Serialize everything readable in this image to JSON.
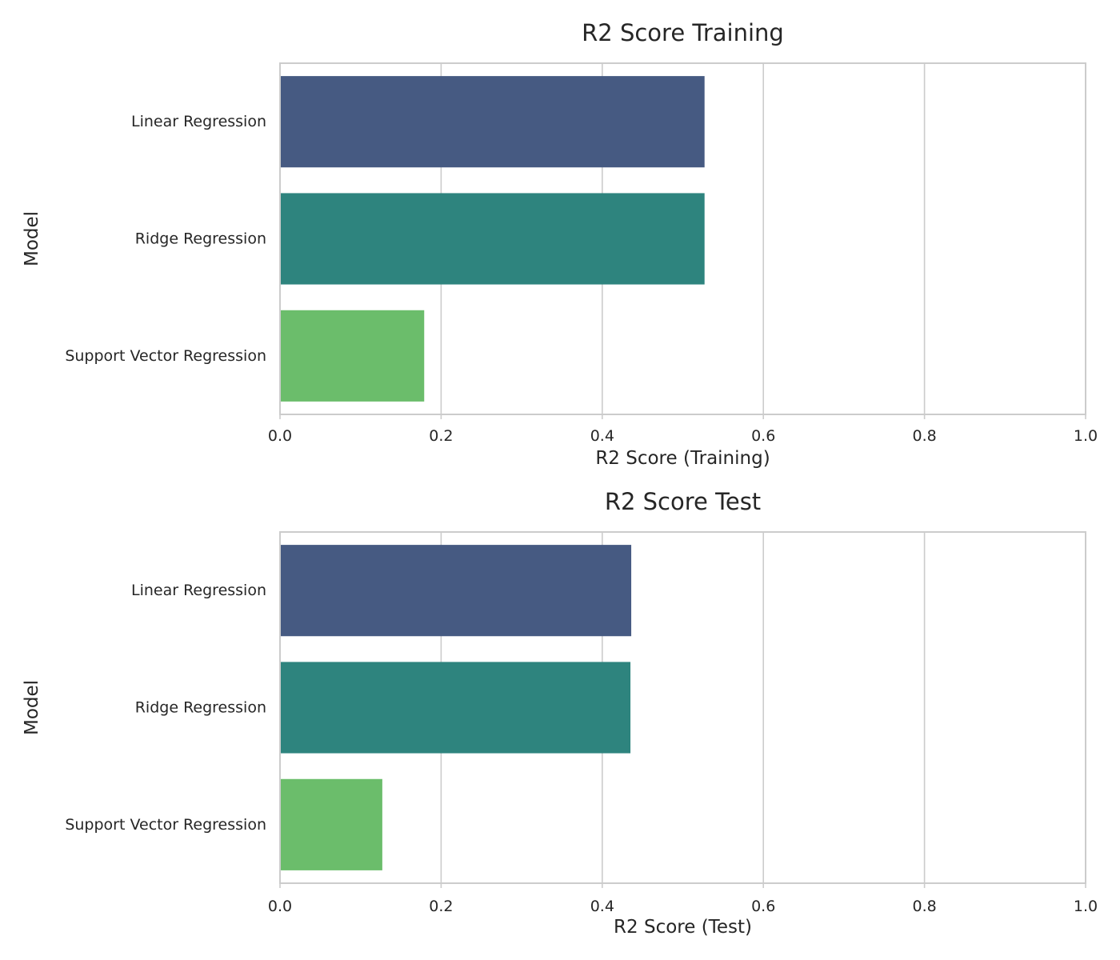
{
  "chart_data": [
    {
      "type": "bar",
      "orientation": "horizontal",
      "title": "R2 Score Training",
      "xlabel": "R2 Score (Training)",
      "ylabel": "Model",
      "xlim": [
        0,
        1
      ],
      "xticks": [
        0.0,
        0.2,
        0.4,
        0.6,
        0.8,
        1.0
      ],
      "xtick_labels": [
        "0.0",
        "0.2",
        "0.4",
        "0.6",
        "0.8",
        "1.0"
      ],
      "categories": [
        "Linear Regression",
        "Ridge Regression",
        "Support Vector Regression"
      ],
      "values": [
        0.527,
        0.527,
        0.179
      ],
      "colors": [
        "#465a82",
        "#2e847e",
        "#6bbd6b"
      ],
      "grid": "vertical",
      "legend": "none"
    },
    {
      "type": "bar",
      "orientation": "horizontal",
      "title": "R2 Score Test",
      "xlabel": "R2 Score (Test)",
      "ylabel": "Model",
      "xlim": [
        0,
        1
      ],
      "xticks": [
        0.0,
        0.2,
        0.4,
        0.6,
        0.8,
        1.0
      ],
      "xtick_labels": [
        "0.0",
        "0.2",
        "0.4",
        "0.6",
        "0.8",
        "1.0"
      ],
      "categories": [
        "Linear Regression",
        "Ridge Regression",
        "Support Vector Regression"
      ],
      "values": [
        0.436,
        0.435,
        0.127
      ],
      "colors": [
        "#465a82",
        "#2e847e",
        "#6bbd6b"
      ],
      "grid": "vertical",
      "legend": "none"
    }
  ]
}
